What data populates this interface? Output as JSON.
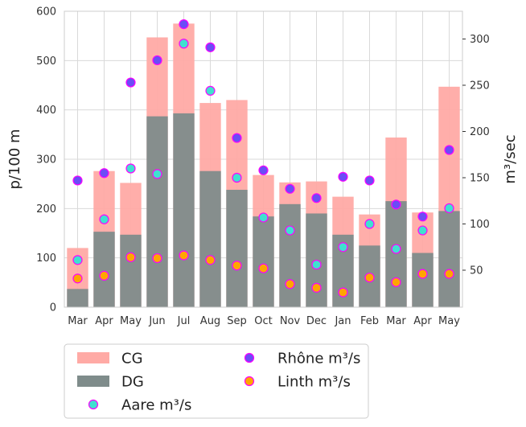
{
  "chart_data": {
    "type": "bar",
    "categories": [
      "Mar",
      "Apr",
      "May",
      "Jun",
      "Jul",
      "Aug",
      "Sep",
      "Oct",
      "Nov",
      "Dec",
      "Jan",
      "Feb",
      "Mar",
      "Apr",
      "May"
    ],
    "ylabel": "p/100 m",
    "y2label": "m³/sec",
    "ylim": [
      0,
      600
    ],
    "y2lim": [
      10,
      330
    ],
    "yticks": [
      0,
      100,
      200,
      300,
      400,
      500,
      600
    ],
    "y2ticks": [
      50,
      100,
      150,
      200,
      250,
      300
    ],
    "grid": true,
    "legend_position": "bottom-left",
    "series": [
      {
        "name": "CG",
        "kind": "bar",
        "axis": "left",
        "color": "#ffaaa5",
        "values": [
          120,
          276,
          252,
          547,
          575,
          414,
          420,
          268,
          253,
          255,
          224,
          188,
          344,
          192,
          447
        ]
      },
      {
        "name": "DG",
        "kind": "bar",
        "axis": "left",
        "color": "#7f8c8b",
        "values": [
          37,
          153,
          147,
          387,
          393,
          276,
          238,
          184,
          209,
          190,
          147,
          125,
          215,
          110,
          195
        ]
      },
      {
        "name": "Aare m³/s",
        "kind": "scatter",
        "axis": "right",
        "fill": "#40e0d0",
        "edge": "#ff00ff",
        "values": [
          61,
          105,
          160,
          154,
          295,
          244,
          150,
          107,
          93,
          56,
          75,
          100,
          73,
          93,
          117
        ]
      },
      {
        "name": "Rhône m³/s",
        "kind": "scatter",
        "axis": "right",
        "fill": "#6b4cf6",
        "edge": "#ff00ff",
        "values": [
          147,
          155,
          253,
          277,
          316,
          291,
          193,
          158,
          138,
          128,
          151,
          147,
          121,
          108,
          180
        ]
      },
      {
        "name": "Linth m³/s",
        "kind": "scatter",
        "axis": "right",
        "fill": "#ffa500",
        "edge": "#ff00ff",
        "values": [
          41,
          44,
          64,
          63,
          66,
          61,
          55,
          52,
          35,
          31,
          26,
          42,
          37,
          46,
          46
        ]
      }
    ]
  }
}
